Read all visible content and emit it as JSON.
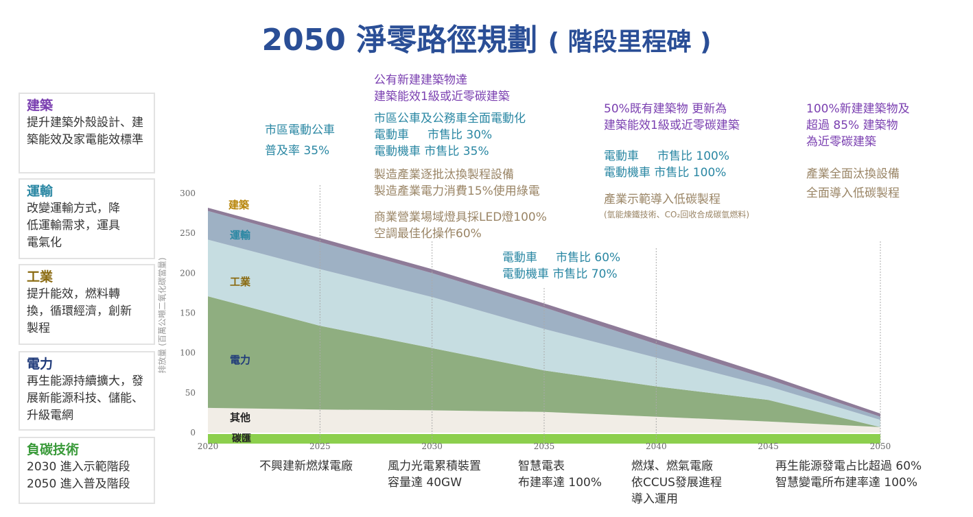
{
  "title": "2050 淨零路徑規劃",
  "subtitle": "( 階段里程碑 )",
  "colors": {
    "building": "#7a3fb0",
    "transport": "#2a87a3",
    "industry": "#8a6a10",
    "power": "#1f3a7a",
    "sink": "#3a9a3a",
    "milestone_industry": "#9a8566"
  },
  "sectors": [
    {
      "title": "建築",
      "text": "提升建築外殼設計、建築能效及家電能效標準"
    },
    {
      "title": "運輸",
      "text": "改變運輸方式，降低運輸需求，運具電氣化"
    },
    {
      "title": "工業",
      "text": "提升能效，燃料轉換，循環經濟，創新製程"
    },
    {
      "title": "電力",
      "text": "再生能源持續擴大，發展新能源科技、儲能、升級電網"
    },
    {
      "title": "負碳技術",
      "text": "2030 進入示範階段\n2050 進入普及階段"
    }
  ],
  "milestones_top": {
    "m2025": "市區電動公車\n普及率 35%",
    "m2030_building": "公有新建建築物達\n建築能效1級或近零碳建築",
    "m2030_transport": "市區公車及公務車全面電動化\n電動車     市售比 30%\n電動機車 市售比 35%",
    "m2030_industry1": "製造產業逐批汰換製程設備\n製造產業電力消費15%使用綠電",
    "m2030_industry2": "商業營業場域燈具採LED燈100%\n空調最佳化操作60%",
    "m2035_transport": "電動車     市售比 60%\n電動機車 市售比 70%",
    "m2040_building": "50%既有建築物 更新為\n建築能效1級或近零碳建築",
    "m2040_transport": "電動車     市售比 100%\n電動機車 市售比 100%",
    "m2040_industry": "產業示範導入低碳製程",
    "m2040_industry_note": "(氫能煉鐵技術、CO₂回收合成碳氫燃料)",
    "m2050_building": "100%新建建築物及\n超過 85% 建築物\n為近零碳建築",
    "m2050_industry": "產業全面汰換設備\n全面導入低碳製程"
  },
  "milestones_bottom": {
    "m2025": "不興建新燃煤電廠",
    "m2030": "風力光電累積裝置\n容量達 40GW",
    "m2035": "智慧電表\n布建率達 100%",
    "m2040": "燃煤、燃氣電廠\n依CCUS發展進程\n導入運用",
    "m2050": "再生能源發電占比超過 60%\n智慧變電所布建率達 100%"
  },
  "chart_data": {
    "type": "area",
    "stacked": true,
    "ylabel": "排放量 (百萬公噸二氧化碳當量)",
    "x": [
      2020,
      2025,
      2030,
      2035,
      2040,
      2045,
      2050
    ],
    "xticks": [
      "2020",
      "2025",
      "2030",
      "2035",
      "2040",
      "2045",
      "2050"
    ],
    "yticks": [
      "0",
      "50",
      "100",
      "150",
      "200",
      "250",
      "300"
    ],
    "ylim": [
      -12,
      300
    ],
    "grid": "vertical dotted at 2025, 2030, 2035, 2040, 2050",
    "sink": {
      "name": "碳匯",
      "values": [
        -12,
        -12,
        -12,
        -12,
        -12,
        -12,
        -12
      ],
      "color": "#8ccf4d"
    },
    "series": [
      {
        "name": "其他",
        "values": [
          31,
          29,
          28,
          26,
          20,
          14,
          7
        ],
        "color": "#f1ede6",
        "label_color": "#222"
      },
      {
        "name": "電力",
        "values": [
          140,
          105,
          78,
          52,
          38,
          27,
          0
        ],
        "color": "#8fae80",
        "label_color": "#1f3a7a"
      },
      {
        "name": "工業",
        "values": [
          71,
          71,
          64,
          52,
          36,
          17,
          9
        ],
        "color": "#c6dde1",
        "label_color": "#8a6a10"
      },
      {
        "name": "運輸",
        "values": [
          36,
          34,
          30,
          27,
          17,
          9,
          4
        ],
        "color": "#9eb1c4",
        "label_color": "#2a87a3"
      },
      {
        "name": "建築",
        "values": [
          4,
          5,
          5,
          5,
          6,
          5,
          4
        ],
        "color": "#8e7b98",
        "label_color": "#b8860b"
      }
    ]
  }
}
